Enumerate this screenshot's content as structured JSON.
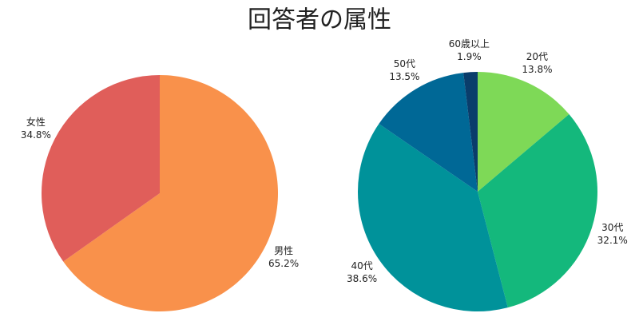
{
  "title": "回答者の属性",
  "chart_data": [
    {
      "type": "pie",
      "categories": [
        "男性",
        "女性"
      ],
      "values": [
        65.2,
        34.8
      ],
      "value_labels": [
        "65.2%",
        "34.8%"
      ],
      "colors": [
        "#f9914b",
        "#e05e5a"
      ]
    },
    {
      "type": "pie",
      "categories": [
        "20代",
        "30代",
        "40代",
        "50代",
        "60歳以上"
      ],
      "values": [
        13.8,
        32.1,
        38.6,
        13.5,
        1.9
      ],
      "value_labels": [
        "13.8%",
        "32.1%",
        "38.6%",
        "13.5%",
        "1.9%"
      ],
      "colors": [
        "#7ed957",
        "#14b87c",
        "#00929a",
        "#006896",
        "#0a3d6b"
      ]
    }
  ]
}
